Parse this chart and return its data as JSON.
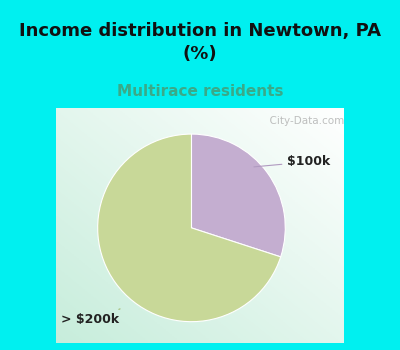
{
  "title": "Income distribution in Newtown, PA\n(%)",
  "subtitle": "Multirace residents",
  "slices": [
    {
      "label": "$100k",
      "value": 30,
      "color": "#c4aed0"
    },
    {
      "label": "> $200k",
      "value": 70,
      "color": "#c8d898"
    }
  ],
  "bg_color": "#00f0f0",
  "title_fontsize": 13,
  "subtitle_fontsize": 11,
  "subtitle_color": "#3aaa88",
  "label_fontsize": 9,
  "startangle": 90,
  "watermark": "  City-Data.com"
}
